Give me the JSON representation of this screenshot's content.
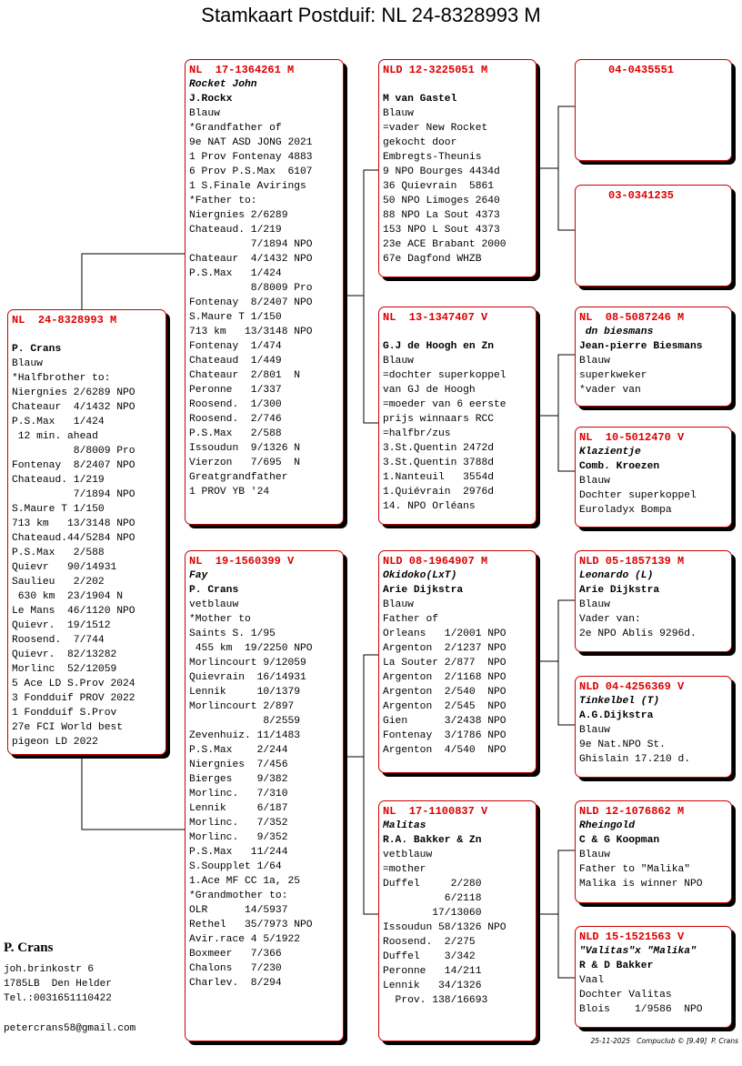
{
  "title": "Stamkaart Postduif: NL  24-8328993 M",
  "boxes": {
    "subject": {
      "id": "NL  24-8328993 M",
      "breeder": "P. Crans",
      "lines": [
        "Blauw",
        "*Halfbrother to:",
        "Niergnies 2/6289 NPO",
        "Chateaur  4/1432 NPO",
        "P.S.Max   1/424",
        " 12 min. ahead",
        "          8/8009 Pro",
        "Fontenay  8/2407 NPO",
        "Chateaud. 1/219",
        "          7/1894 NPO",
        "S.Maure T 1/150",
        "713 km   13/3148 NPO",
        "Chateaud.44/5284 NPO",
        "P.S.Max   2/588",
        "Quievr   90/14931",
        "Saulieu   2/202",
        " 630 km  23/1904 N",
        "Le Mans  46/1120 NPO",
        "Quievr.  19/1512",
        "Roosend.  7/744",
        "Quievr.  82/13282",
        "Morlinc  52/12059",
        "5 Ace LD S.Prov 2024",
        "3 Fondduif PROV 2022",
        "1 Fondduif S.Prov",
        "27e FCI World best",
        "pigeon LD 2022"
      ]
    },
    "sire": {
      "id": "NL  17-1364261 M",
      "name": "Rocket John",
      "breeder": "J.Rockx",
      "lines": [
        "Blauw",
        "*Grandfather of",
        "9e NAT ASD JONG 2021",
        "1 Prov Fontenay 4883",
        "6 Prov P.S.Max  6107",
        "1 S.Finale Avirings",
        "*Father to:",
        "Niergnies 2/6289",
        "Chateaud. 1/219",
        "          7/1894 NPO",
        "Chateaur  4/1432 NPO",
        "P.S.Max   1/424",
        "          8/8009 Pro",
        "Fontenay  8/2407 NPO",
        "S.Maure T 1/150",
        "713 km   13/3148 NPO",
        "Fontenay  1/474",
        "Chateaud  1/449",
        "Chateaur  2/801  N",
        "Peronne   1/337",
        "Roosend.  1/300",
        "Roosend.  2/746",
        "P.S.Max   2/588",
        "Issoudun  9/1326 N",
        "Vierzon   7/695  N",
        "Greatgrandfather",
        "1 PROV YB '24"
      ]
    },
    "dam": {
      "id": "NL  19-1560399 V",
      "name": "Fay",
      "breeder": "P. Crans",
      "lines": [
        "vetblauw",
        "*Mother to",
        "Saints S. 1/95",
        " 455 km  19/2250 NPO",
        "Morlincourt 9/12059",
        "Quievrain  16/14931",
        "Lennik     10/1379",
        "Morlincourt 2/897",
        "            8/2559",
        "Zevenhuiz. 11/1483",
        "P.S.Max    2/244",
        "Niergnies  7/456",
        "Bierges    9/382",
        "Morlinc.   7/310",
        "Lennik     6/187",
        "Morlinc.   7/352",
        "Morlinc.   9/352",
        "P.S.Max   11/244",
        "S.Soupplet 1/64",
        "1.Ace MF CC 1a, 25",
        "*Grandmother to:",
        "OLR      14/5937",
        "Rethel   35/7973 NPO",
        "Avir.race 4 5/1922",
        "Boxmeer   7/366",
        "Chalons   7/230",
        "Charlev.  8/294"
      ]
    },
    "ss": {
      "id": "NLD 12-3225051 M",
      "breeder": "M van Gastel",
      "lines": [
        "Blauw",
        "=vader New Rocket",
        "gekocht door",
        "Embregts-Theunis",
        "9 NPO Bourges 4434d",
        "36 Quievrain  5861",
        "50 NPO Limoges 2640",
        "88 NPO La Sout 4373",
        "153 NPO L Sout 4373",
        "23e ACE Brabant 2000",
        "67e Dagfond WHZB"
      ]
    },
    "sd": {
      "id": "NL  13-1347407 V",
      "breeder": "G.J de Hoogh en Zn",
      "lines": [
        "Blauw",
        "=dochter superkoppel",
        "van GJ de Hoogh",
        "=moeder van 6 eerste",
        "prijs winnaars RCC",
        "=halfbr/zus",
        "3.St.Quentin 2472d",
        "3.St.Quentin 3788d",
        "1.Nanteuil   3554d",
        "1.Quiévrain  2976d",
        "14. NPO Orléans"
      ]
    },
    "ds": {
      "id": "NLD 08-1964907 M",
      "name": "Okidoko(LxT)",
      "breeder": "Arie Dijkstra",
      "lines": [
        "Blauw",
        "Father of",
        "Orleans   1/2001 NPO",
        "Argenton  2/1237 NPO",
        "La Souter 2/877  NPO",
        "Argenton  2/1168 NPO",
        "Argenton  2/540  NPO",
        "Argenton  2/545  NPO",
        "Gien      3/2438 NPO",
        "Fontenay  3/1786 NPO",
        "Argenton  4/540  NPO"
      ]
    },
    "dd": {
      "id": "NL  17-1100837 V",
      "name": "Malitas",
      "breeder": "R.A. Bakker & Zn",
      "lines": [
        "vetblauw",
        "=mother",
        "Duffel     2/280",
        "          6/2118",
        "        17/13060",
        "Issoudun 58/1326 NPO",
        "Roosend.  2/275",
        "Duffel    3/342",
        "Peronne   14/211",
        "Lennik   34/1326",
        "  Prov. 138/16693"
      ]
    },
    "sss": {
      "id": "04-0435551"
    },
    "ssd": {
      "id": "03-0341235"
    },
    "sds": {
      "id": "NL  08-5087246 M",
      "name": " dn biesmans",
      "breeder": "Jean-pierre Biesmans",
      "lines": [
        "Blauw",
        "superkweker",
        "*vader van"
      ]
    },
    "sdd": {
      "id": "NL  10-5012470 V",
      "name": "Klazientje",
      "breeder": "Comb. Kroezen",
      "lines": [
        "Blauw",
        "Dochter superkoppel",
        "Euroladyx Bompa"
      ]
    },
    "dss": {
      "id": "NLD 05-1857139 M",
      "name": "Leonardo (L)",
      "breeder": "Arie Dijkstra",
      "lines": [
        "Blauw",
        "Vader van:",
        "2e NPO Ablis 9296d."
      ]
    },
    "dsd": {
      "id": "NLD 04-4256369 V",
      "name": "Tinkelbel (T)",
      "breeder": "A.G.Dijkstra",
      "lines": [
        "Blauw",
        "9e Nat.NPO St.",
        "Ghislain 17.210 d."
      ]
    },
    "dds": {
      "id": "NLD 12-1076862 M",
      "name": "Rheingold",
      "breeder": "C & G Koopman",
      "lines": [
        "Blauw",
        "Father to \"Malika\"",
        "Malika is winner NPO"
      ]
    },
    "ddd": {
      "id": "NLD 15-1521563 V",
      "name": "\"Valitas\"x \"Malika\"",
      "breeder": "R & D Bakker",
      "lines": [
        "Vaal",
        "Dochter Valitas",
        "Blois    1/9586  NPO"
      ]
    }
  },
  "owner": {
    "name": "P. Crans",
    "address": [
      "joh.brinkostr 6",
      "1785LB  Den Helder",
      "Tel.:0031651110422"
    ],
    "email": "petercrans58@gmail.com"
  },
  "footer": "25-11-2025   Compuclub © [9.49]  P. Crans"
}
